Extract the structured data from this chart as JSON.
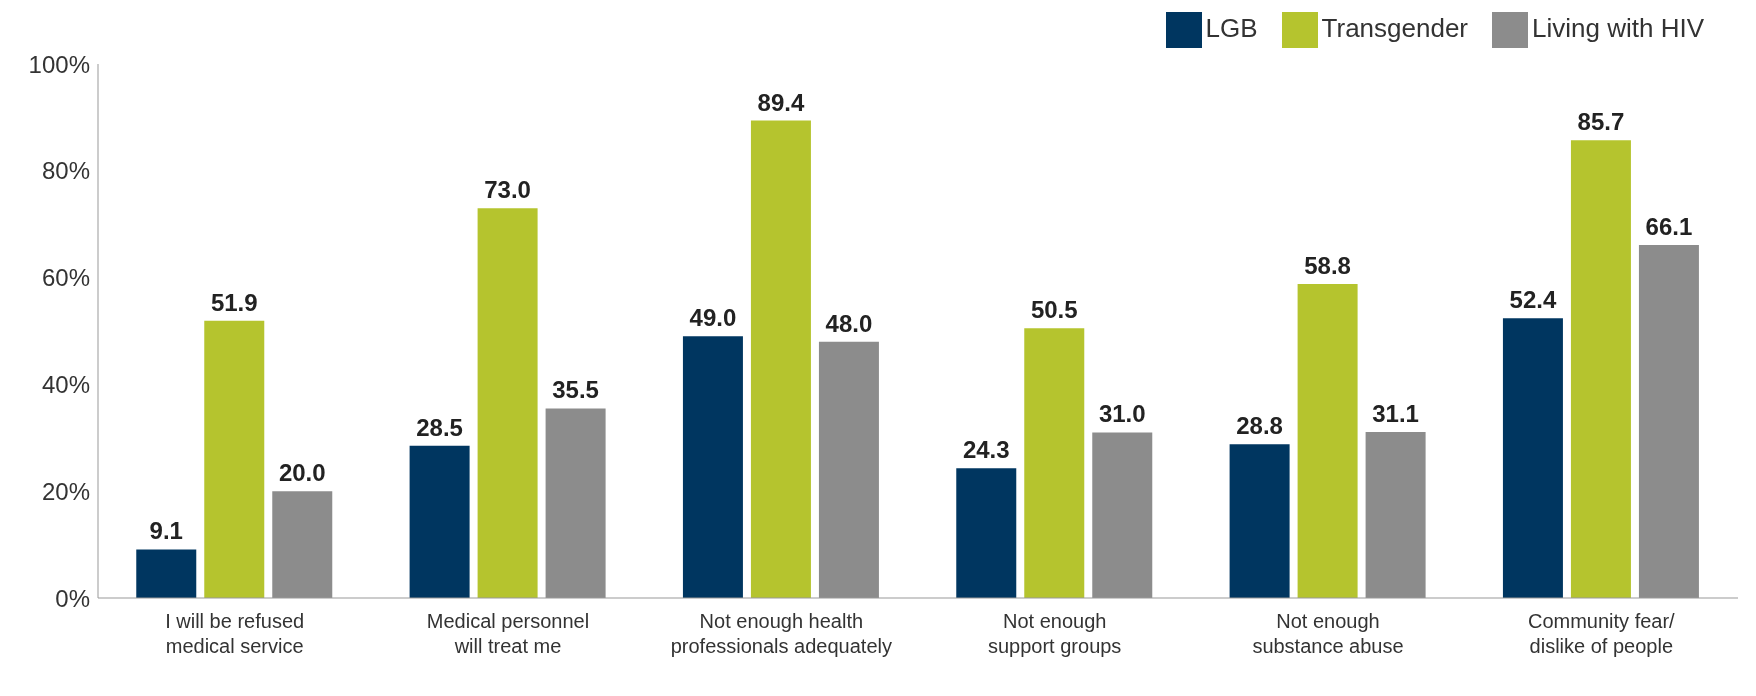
{
  "chart_data": {
    "type": "bar",
    "categories": [
      "I will be refused\nmedical service",
      "Medical personnel\nwill treat me",
      "Not enough health\nprofessionals adequately",
      "Not enough\nsupport groups",
      "Not enough\nsubstance abuse",
      "Community fear/\ndislike of people"
    ],
    "series": [
      {
        "name": "LGB",
        "color": "#003660",
        "values": [
          9.1,
          28.5,
          49.0,
          24.3,
          28.8,
          52.4
        ],
        "value_labels": [
          "9.1",
          "28.5",
          "49.0",
          "24.3",
          "28.8",
          "52.4"
        ]
      },
      {
        "name": "Transgender",
        "color": "#b5c42e",
        "values": [
          51.9,
          73.0,
          89.4,
          50.5,
          58.8,
          85.7
        ],
        "value_labels": [
          "51.9",
          "73.0",
          "89.4",
          "50.5",
          "58.8",
          "85.7"
        ]
      },
      {
        "name": "Living with HIV",
        "color": "#8c8c8c",
        "values": [
          20.0,
          35.5,
          48.0,
          31.0,
          31.1,
          66.1
        ],
        "value_labels": [
          "20.0",
          "35.5",
          "48.0",
          "31.0",
          "31.1",
          "66.1"
        ]
      }
    ],
    "ylim": [
      0,
      100
    ],
    "yticks": [
      {
        "value": 0,
        "label": "0%"
      },
      {
        "value": 20,
        "label": "20%"
      },
      {
        "value": 40,
        "label": "40%"
      },
      {
        "value": 60,
        "label": "60%"
      },
      {
        "value": 80,
        "label": "80%"
      },
      {
        "value": 100,
        "label": "100%"
      }
    ],
    "grid": false,
    "legend": "top right"
  }
}
